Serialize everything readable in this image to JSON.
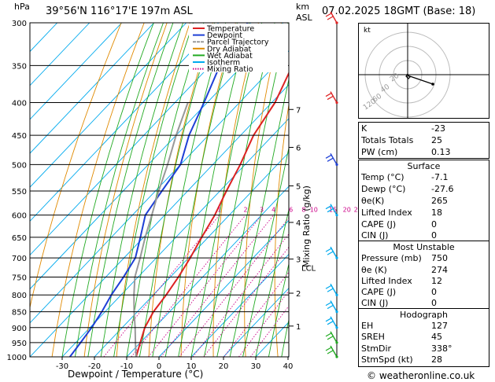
{
  "header": {
    "location": "39°56'N  116°17'E  197m  ASL",
    "pressure_unit": "hPa",
    "height_unit": "km",
    "height_ref": "ASL",
    "datetime": "07.02.2025  18GMT  (Base: 18)"
  },
  "chart_data": {
    "type": "line",
    "title": "39°56'N  116°17'E  197m  ASL",
    "xlabel": "Dewpoint / Temperature (°C)",
    "ylabel": "hPa",
    "right_axis_label": "Mixing Ratio (g/kg)",
    "x_ticks": [
      -30,
      -20,
      -10,
      0,
      10,
      20,
      30,
      40
    ],
    "pressure_levels": [
      300,
      350,
      400,
      450,
      500,
      550,
      600,
      650,
      700,
      750,
      800,
      850,
      900,
      950,
      1000
    ],
    "height_ticks_km": [
      1,
      2,
      3,
      4,
      5,
      6,
      7
    ],
    "lcl_label": "LCL",
    "mixing_ratio_labels": [
      "1",
      "2",
      "3",
      "4",
      "6",
      "8",
      "10",
      "15",
      "20",
      "25"
    ],
    "legend": [
      "Temperature",
      "Dewpoint",
      "Parcel Trajectory",
      "Dry Adiabat",
      "Wet Adiabat",
      "Isotherm",
      "Mixing Ratio"
    ],
    "series": [
      {
        "name": "Temperature",
        "color": "#dd2222",
        "points": [
          [
            1000,
            -7.1
          ],
          [
            975,
            -8.5
          ],
          [
            950,
            -10
          ],
          [
            900,
            -13
          ],
          [
            850,
            -15
          ],
          [
            800,
            -16
          ],
          [
            750,
            -17.5
          ],
          [
            700,
            -19.5
          ],
          [
            650,
            -22
          ],
          [
            600,
            -24.5
          ],
          [
            550,
            -28
          ],
          [
            500,
            -31.5
          ],
          [
            450,
            -36
          ],
          [
            400,
            -39
          ],
          [
            350,
            -44.5
          ],
          [
            300,
            -51
          ]
        ]
      },
      {
        "name": "Dewpoint",
        "color": "#1e3fd6",
        "points": [
          [
            1000,
            -27.6
          ],
          [
            950,
            -28.5
          ],
          [
            900,
            -29.5
          ],
          [
            850,
            -31
          ],
          [
            800,
            -33
          ],
          [
            750,
            -34.5
          ],
          [
            700,
            -36.5
          ],
          [
            650,
            -41
          ],
          [
            600,
            -46
          ],
          [
            550,
            -48
          ],
          [
            500,
            -50
          ],
          [
            450,
            -56
          ],
          [
            400,
            -61
          ],
          [
            350,
            -67
          ],
          [
            300,
            -71
          ]
        ]
      },
      {
        "name": "Parcel Trajectory",
        "color": "#999999",
        "points": [
          [
            1000,
            -7.1
          ],
          [
            950,
            -11.5
          ],
          [
            900,
            -16
          ],
          [
            850,
            -21
          ],
          [
            800,
            -26
          ],
          [
            750,
            -31
          ],
          [
            700,
            -35
          ],
          [
            650,
            -39.5
          ],
          [
            600,
            -44
          ],
          [
            550,
            -49
          ],
          [
            500,
            -54
          ],
          [
            450,
            -60
          ],
          [
            400,
            -66
          ]
        ]
      }
    ]
  },
  "legend_colors": {
    "Temperature": "#dd2222",
    "Dewpoint": "#1e3fd6",
    "Parcel Trajectory": "#999999",
    "Dry Adiabat": "#e08a00",
    "Wet Adiabat": "#22aa22",
    "Isotherm": "#00aaee",
    "Mixing Ratio": "#cc0088"
  },
  "hodograph": {
    "unit_label": "kt",
    "ring_labels": [
      "20",
      "40",
      "60",
      "120"
    ]
  },
  "indices": {
    "rows": [
      {
        "k": "K",
        "v": "-23"
      },
      {
        "k": "Totals Totals",
        "v": "25"
      },
      {
        "k": "PW (cm)",
        "v": "0.13"
      }
    ]
  },
  "surface": {
    "title": "Surface",
    "rows": [
      {
        "k": "Temp (°C)",
        "v": "-7.1"
      },
      {
        "k": "Dewp (°C)",
        "v": "-27.6"
      },
      {
        "k": "θe(K)",
        "v": "265"
      },
      {
        "k": "Lifted Index",
        "v": "18"
      },
      {
        "k": "CAPE (J)",
        "v": "0"
      },
      {
        "k": "CIN (J)",
        "v": "0"
      }
    ]
  },
  "most_unstable": {
    "title": "Most Unstable",
    "rows": [
      {
        "k": "Pressure (mb)",
        "v": "750"
      },
      {
        "k": "θe (K)",
        "v": "274"
      },
      {
        "k": "Lifted Index",
        "v": "12"
      },
      {
        "k": "CAPE (J)",
        "v": "0"
      },
      {
        "k": "CIN (J)",
        "v": "0"
      }
    ]
  },
  "hodo_params": {
    "title": "Hodograph",
    "rows": [
      {
        "k": "EH",
        "v": "127"
      },
      {
        "k": "SREH",
        "v": "45"
      },
      {
        "k": "StmDir",
        "v": "338°"
      },
      {
        "k": "StmSpd (kt)",
        "v": "28"
      }
    ]
  },
  "footer": {
    "copyright": "© weatheronline.co.uk"
  }
}
